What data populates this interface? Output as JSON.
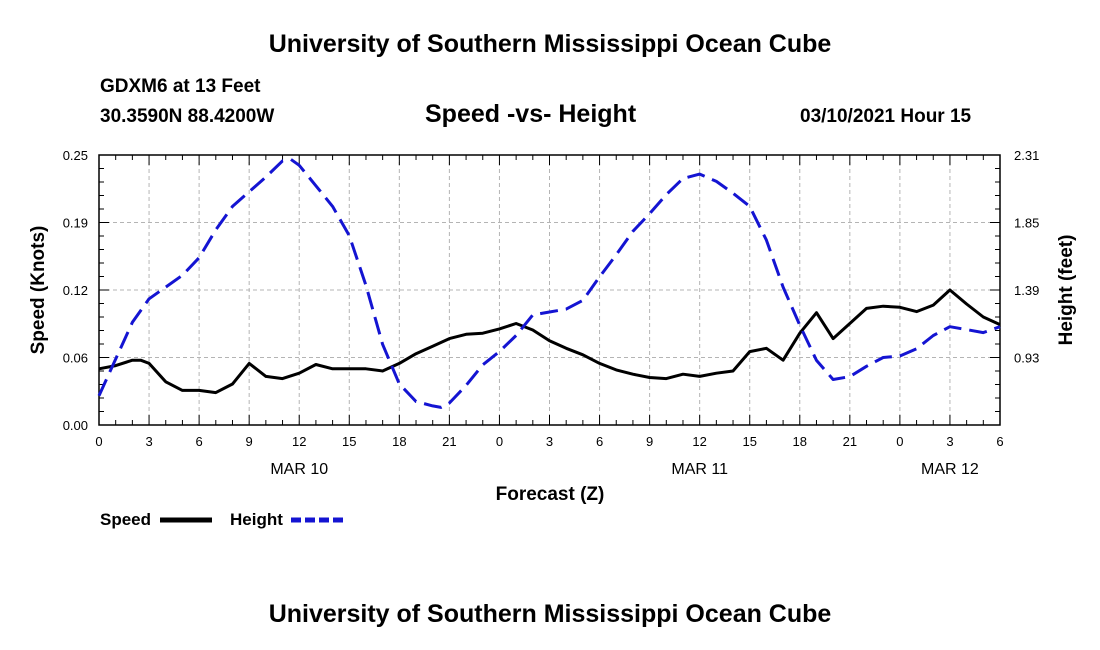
{
  "header": {
    "title": "University of Southern Mississippi Ocean Cube",
    "station": "GDXM6 at 13 Feet",
    "location": "30.3590N 88.4200W",
    "datetime": "03/10/2021 Hour 15"
  },
  "footer": {
    "title": "University of Southern Mississippi Ocean Cube"
  },
  "chart_data": {
    "type": "line",
    "title": "Speed -vs- Height",
    "xlabel": "Forecast (Z)",
    "ylabel": "Speed (Knots)",
    "y2label": "Height (feet)",
    "xlim": [
      0,
      54
    ],
    "ylim": [
      0,
      0.25
    ],
    "y2lim": [
      0.47,
      2.31
    ],
    "yticks": [
      "0.00",
      "0.06",
      "0.12",
      "0.19",
      "0.25"
    ],
    "y2ticks": [
      "0.93",
      "1.39",
      "1.85",
      "2.31"
    ],
    "xtick_labels": [
      "0",
      "3",
      "6",
      "9",
      "12",
      "15",
      "18",
      "21",
      "0",
      "3",
      "6",
      "9",
      "12",
      "15",
      "18",
      "21",
      "0",
      "3",
      "6"
    ],
    "date_labels": [
      {
        "label": "MAR 10",
        "hour": 12
      },
      {
        "label": "MAR 11",
        "hour": 36
      },
      {
        "label": "MAR 12",
        "hour": 51
      }
    ],
    "legend": {
      "position": "bottom-left"
    },
    "colors": {
      "speed": "#000000",
      "height": "#1414d2",
      "grid": "#b4b4b4"
    },
    "series": [
      {
        "name": "Speed",
        "axis": "left",
        "style": "solid",
        "x": [
          0,
          1,
          2,
          2.5,
          3,
          4,
          5,
          6,
          7,
          8,
          9,
          10,
          11,
          12,
          13,
          14,
          15,
          16,
          17,
          18,
          19,
          20,
          21,
          22,
          23,
          24,
          25,
          26,
          27,
          28,
          29,
          30,
          31,
          32,
          33,
          34,
          35,
          36,
          37,
          38,
          39,
          40,
          41,
          42,
          43,
          44,
          45,
          46,
          47,
          48,
          49,
          50,
          51,
          52,
          53,
          54
        ],
        "values": [
          0.052,
          0.055,
          0.06,
          0.06,
          0.057,
          0.04,
          0.032,
          0.032,
          0.03,
          0.038,
          0.057,
          0.045,
          0.043,
          0.048,
          0.056,
          0.052,
          0.052,
          0.052,
          0.05,
          0.057,
          0.066,
          0.073,
          0.08,
          0.084,
          0.085,
          0.089,
          0.094,
          0.088,
          0.078,
          0.071,
          0.065,
          0.057,
          0.051,
          0.047,
          0.044,
          0.043,
          0.047,
          0.045,
          0.048,
          0.05,
          0.068,
          0.071,
          0.06,
          0.085,
          0.104,
          0.08,
          0.094,
          0.108,
          0.11,
          0.109,
          0.105,
          0.111,
          0.125,
          0.112,
          0.1,
          0.093
        ]
      },
      {
        "name": "Height",
        "axis": "right",
        "style": "dashed",
        "x": [
          0,
          1,
          2,
          3,
          4,
          5,
          6,
          7,
          8,
          9,
          10,
          11,
          11.5,
          12,
          13,
          14,
          15,
          16,
          17,
          18,
          19,
          20,
          20.5,
          21,
          22,
          23,
          24,
          25,
          26,
          27,
          28,
          29,
          30,
          31,
          32,
          33,
          34,
          35,
          36,
          37,
          38,
          39,
          40,
          41,
          42,
          43,
          44,
          45,
          46,
          47,
          48,
          49,
          50,
          51,
          52,
          53,
          54
        ],
        "values": [
          0.67,
          0.92,
          1.17,
          1.33,
          1.41,
          1.49,
          1.61,
          1.8,
          1.96,
          2.06,
          2.16,
          2.27,
          2.28,
          2.24,
          2.1,
          1.96,
          1.76,
          1.42,
          1.02,
          0.75,
          0.63,
          0.6,
          0.59,
          0.62,
          0.74,
          0.88,
          0.97,
          1.08,
          1.22,
          1.24,
          1.26,
          1.32,
          1.48,
          1.63,
          1.79,
          1.91,
          2.04,
          2.15,
          2.18,
          2.13,
          2.05,
          1.96,
          1.73,
          1.41,
          1.15,
          0.91,
          0.78,
          0.8,
          0.87,
          0.93,
          0.94,
          0.99,
          1.08,
          1.14,
          1.12,
          1.1,
          1.14
        ]
      }
    ]
  }
}
